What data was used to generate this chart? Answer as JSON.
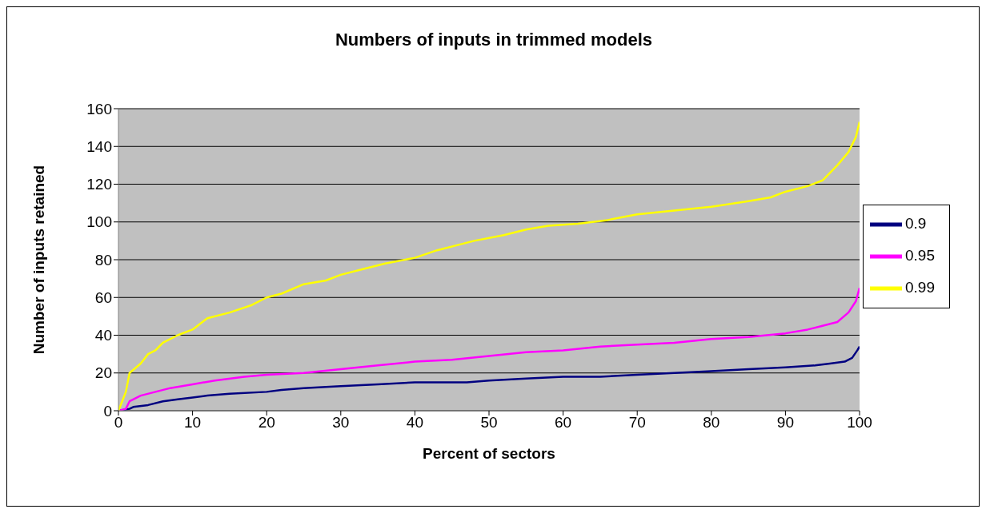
{
  "chart_data": {
    "type": "line",
    "title": "Numbers of inputs in trimmed models",
    "xlabel": "Percent of sectors",
    "ylabel": "Number of inputs retained",
    "xlim": [
      0,
      100
    ],
    "xticks": [
      0,
      10,
      20,
      30,
      40,
      50,
      60,
      70,
      80,
      90,
      100
    ],
    "ylim": [
      0,
      160
    ],
    "yticks": [
      0,
      20,
      40,
      60,
      80,
      100,
      120,
      140,
      160
    ],
    "grid": "y",
    "legend": "right",
    "marker": "none",
    "line_style": "solid",
    "series": [
      {
        "name": "0.9",
        "color": "#000080",
        "x": [
          0,
          1.5,
          2,
          4,
          6,
          8,
          10,
          12,
          15,
          20,
          22,
          25,
          30,
          35,
          40,
          47,
          50,
          55,
          60,
          65,
          70,
          75,
          80,
          85,
          90,
          94,
          96,
          98,
          99,
          99.7,
          100
        ],
        "values": [
          0,
          1,
          2,
          3,
          5,
          6,
          7,
          8,
          9,
          10,
          11,
          12,
          13,
          14,
          15,
          15,
          16,
          17,
          18,
          18,
          19,
          20,
          21,
          22,
          23,
          24,
          25,
          26,
          28,
          32,
          34
        ]
      },
      {
        "name": "0.95",
        "color": "#ff00ff",
        "x": [
          0,
          1,
          1.5,
          3,
          5,
          7,
          10,
          13,
          17,
          20,
          25,
          30,
          35,
          40,
          45,
          50,
          55,
          60,
          65,
          70,
          75,
          80,
          85,
          90,
          93,
          95,
          97,
          98.5,
          99.5,
          100
        ],
        "values": [
          0,
          1,
          5,
          8,
          10,
          12,
          14,
          16,
          18,
          19,
          20,
          22,
          24,
          26,
          27,
          29,
          31,
          32,
          34,
          35,
          36,
          38,
          39,
          41,
          43,
          45,
          47,
          52,
          58,
          65
        ]
      },
      {
        "name": "0.99",
        "color": "#ffff00",
        "x": [
          0,
          0.5,
          1,
          1.5,
          3,
          4,
          5,
          6,
          8,
          10,
          12,
          15,
          18,
          20,
          22,
          25,
          28,
          30,
          33,
          36,
          40,
          43,
          46,
          48,
          52,
          55,
          58,
          62,
          66,
          70,
          75,
          80,
          85,
          88,
          90,
          93,
          95,
          97,
          98.5,
          99.5,
          100
        ],
        "values": [
          0,
          5,
          10,
          20,
          25,
          30,
          32,
          36,
          40,
          43,
          49,
          52,
          56,
          60,
          62,
          67,
          69,
          72,
          75,
          78,
          81,
          85,
          88,
          90,
          93,
          96,
          98,
          99,
          101,
          104,
          106,
          108,
          111,
          113,
          116,
          119,
          122,
          130,
          137,
          145,
          153
        ]
      }
    ]
  }
}
